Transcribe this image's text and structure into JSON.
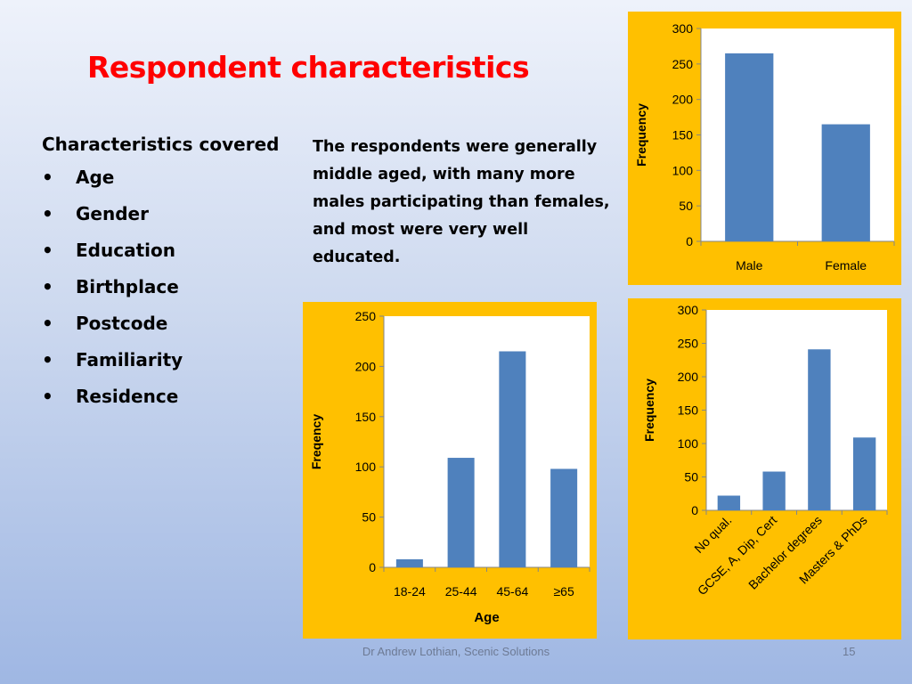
{
  "slide": {
    "title": "Respondent characteristics",
    "characteristics_heading": "Characteristics covered",
    "bullet_symbol": "•",
    "characteristics": [
      "Age",
      "Gender",
      "Education",
      "Birthplace",
      "Postcode",
      "Familiarity",
      "Residence"
    ],
    "description": "The respondents were generally middle aged, with many more males participating than females, and most were very well educated.",
    "footer": "Dr Andrew Lothian, Scenic Solutions",
    "page_number": "15"
  },
  "colors": {
    "title": "#ff0000",
    "chart_background": "#ffc000",
    "bar": "#4f81bd",
    "plot_area": "#ffffff"
  },
  "chart_data": [
    {
      "id": "gender",
      "type": "bar",
      "categories": [
        "Male",
        "Female"
      ],
      "values": [
        265,
        165
      ],
      "xlabel": "",
      "ylabel": "Frequency",
      "ylim": [
        0,
        300
      ],
      "ticks": [
        0,
        50,
        100,
        150,
        200,
        250,
        300
      ],
      "grid": false,
      "legend": "none"
    },
    {
      "id": "age",
      "type": "bar",
      "categories": [
        "18-24",
        "25-44",
        "45-64",
        "≥65"
      ],
      "values": [
        8,
        109,
        215,
        98
      ],
      "xlabel": "Age",
      "ylabel": "Freqency",
      "ylim": [
        0,
        250
      ],
      "ticks": [
        0,
        50,
        100,
        150,
        200,
        250
      ],
      "grid": false,
      "legend": "none"
    },
    {
      "id": "education",
      "type": "bar",
      "categories": [
        "No qual.",
        "GCSE, A, Dip, Cert",
        "Bachelor degrees",
        "Masters & PhDs"
      ],
      "values": [
        22,
        58,
        241,
        109
      ],
      "xlabel": "",
      "ylabel": "Frequency",
      "ylim": [
        0,
        300
      ],
      "ticks": [
        0,
        50,
        100,
        150,
        200,
        250,
        300
      ],
      "grid": false,
      "legend": "none",
      "rotated_labels": true
    }
  ]
}
